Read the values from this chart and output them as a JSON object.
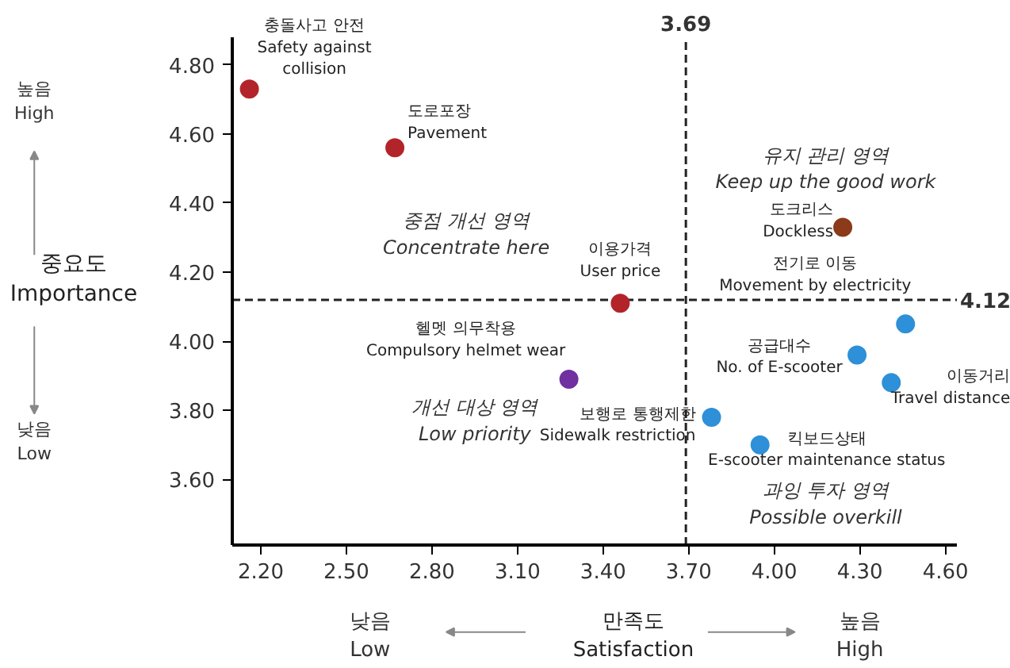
{
  "chart_data": {
    "type": "scatter",
    "xlabel": "만족도\nSatisfaction",
    "ylabel": "중요도\nImportance",
    "xlim": [
      2.1,
      4.64
    ],
    "ylim": [
      3.41,
      4.88
    ],
    "xticks": [
      {
        "value": 2.2,
        "label": "2.20"
      },
      {
        "value": 2.5,
        "label": "2.50"
      },
      {
        "value": 2.8,
        "label": "2.80"
      },
      {
        "value": 3.1,
        "label": "3.10"
      },
      {
        "value": 3.4,
        "label": "3.40"
      },
      {
        "value": 3.7,
        "label": "3.70"
      },
      {
        "value": 4.0,
        "label": "4.00"
      },
      {
        "value": 4.3,
        "label": "4.30"
      },
      {
        "value": 4.6,
        "label": "4.60"
      }
    ],
    "yticks": [
      {
        "value": 3.6,
        "label": "3.60"
      },
      {
        "value": 3.8,
        "label": "3.80"
      },
      {
        "value": 4.0,
        "label": "4.00"
      },
      {
        "value": 4.2,
        "label": "4.20"
      },
      {
        "value": 4.4,
        "label": "4.40"
      },
      {
        "value": 4.6,
        "label": "4.60"
      },
      {
        "value": 4.8,
        "label": "4.80"
      }
    ],
    "marker": "circle",
    "grid": false,
    "series": [
      {
        "color": "#b3242a",
        "x": [
          2.16,
          2.67,
          3.46
        ],
        "values": [
          4.73,
          4.56,
          4.11
        ]
      },
      {
        "color": "#7030a0",
        "x": [
          3.28
        ],
        "values": [
          3.89
        ]
      },
      {
        "color": "#8b3a1a",
        "x": [
          4.24
        ],
        "values": [
          4.33
        ]
      },
      {
        "color": "#2e90d8",
        "x": [
          3.78,
          3.95,
          4.46,
          4.29,
          4.41
        ],
        "values": [
          3.78,
          3.7,
          4.05,
          3.96,
          3.88
        ]
      }
    ],
    "ref_lines": [
      {
        "axis": "x",
        "value": 3.69,
        "label": "3.69",
        "line_style": "dashed",
        "color": "#222222"
      },
      {
        "axis": "y",
        "value": 4.12,
        "label": "4.12",
        "line_style": "dashed",
        "color": "#222222"
      }
    ],
    "annotations": [
      {
        "text": "충돌사고 안전\nSafety against\ncollision",
        "x": 2.16,
        "y": 4.73
      },
      {
        "text": "도로포장\nPavement",
        "x": 2.67,
        "y": 4.56
      },
      {
        "text": "이용가격\nUser price",
        "x": 3.46,
        "y": 4.11
      },
      {
        "text": "헬멧 의무착용\nCompulsory helmet wear",
        "x": 3.28,
        "y": 3.89
      },
      {
        "text": "보행로 통행제한\nSidewalk restriction",
        "x": 3.78,
        "y": 3.78
      },
      {
        "text": "킥보드상태\nE-scooter maintenance status",
        "x": 3.95,
        "y": 3.7
      },
      {
        "text": "도크리스\nDockless",
        "x": 4.24,
        "y": 4.33
      },
      {
        "text": "전기로 이동\nMovement by electricity",
        "x": 4.46,
        "y": 4.05
      },
      {
        "text": "공급대수\nNo. of E-scooter",
        "x": 4.29,
        "y": 3.96
      },
      {
        "text": "이동거리\nTravel distance",
        "x": 4.41,
        "y": 3.88
      },
      "중점 개선 영역\nConcentrate here",
      "유지 관리 영역\nKeep up the good work",
      "개선 대상 영역\nLow priority",
      "과잉 투자 영역\nPossible overkill",
      "높음\nHigh",
      "낮음\nLow",
      "낮음\nLow",
      "높음\nHigh"
    ]
  }
}
